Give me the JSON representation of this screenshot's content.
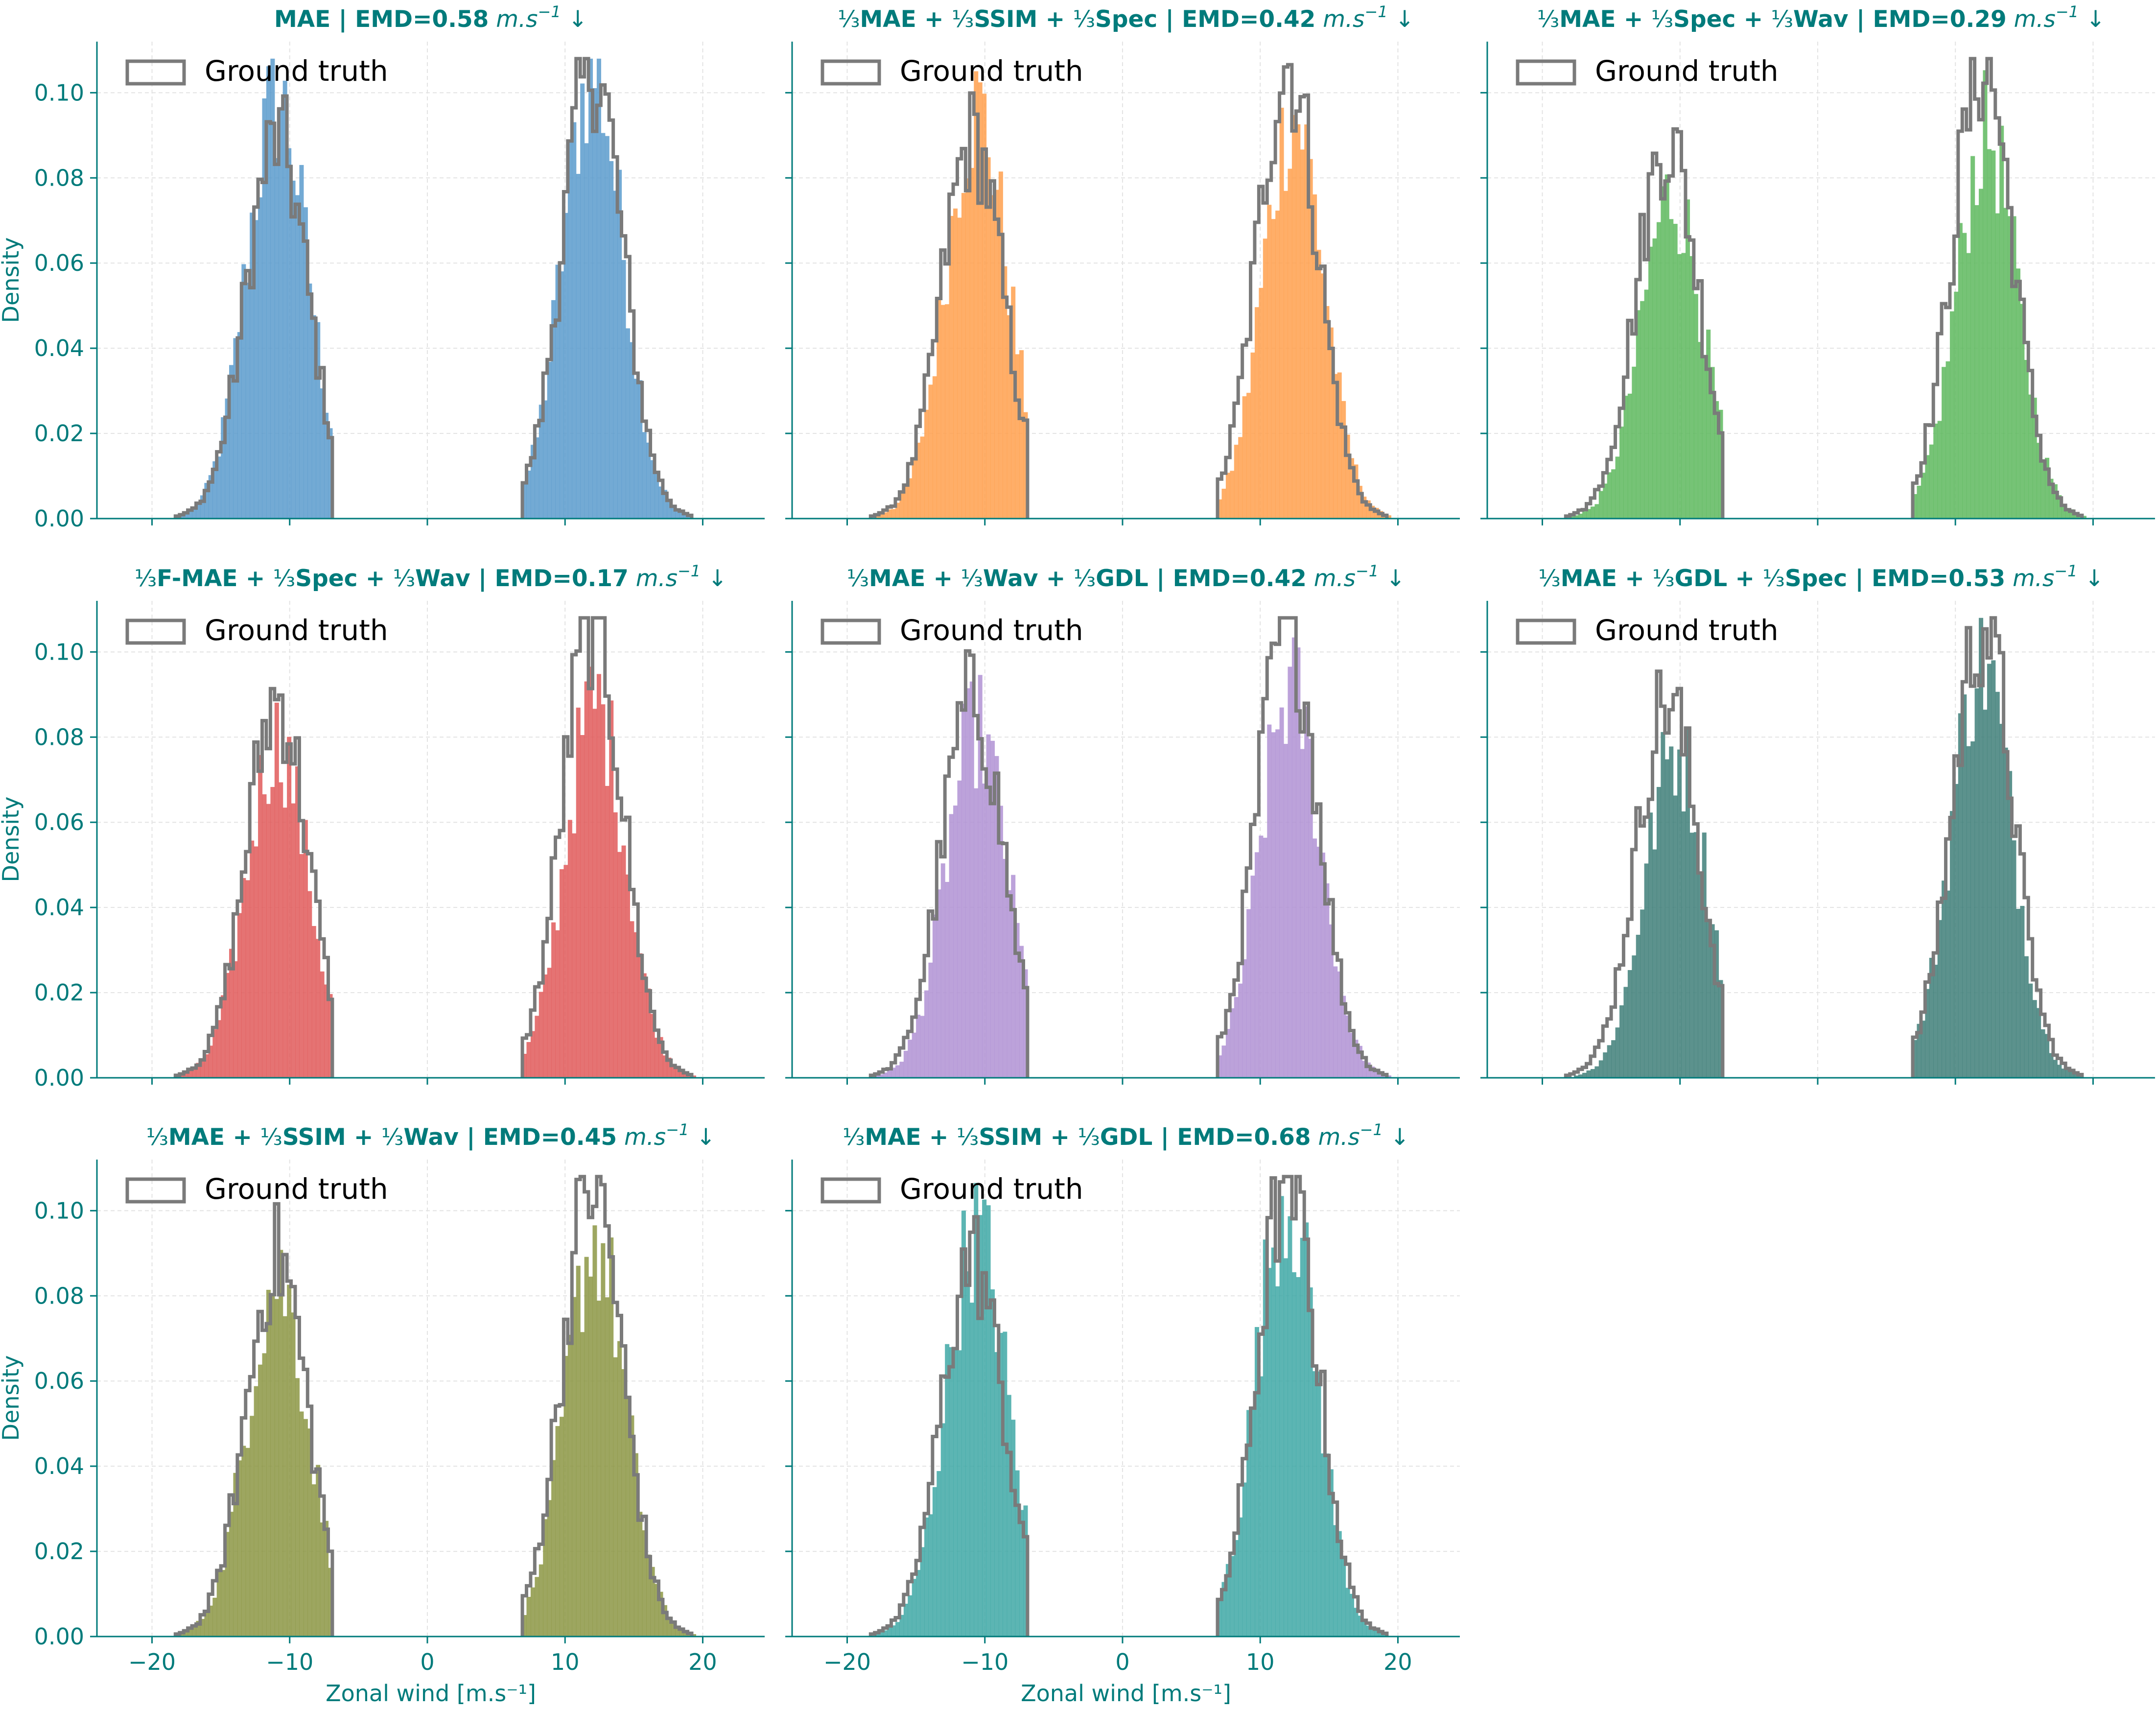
{
  "figure": {
    "accent_color": "#007b7b",
    "ground_truth_color": "#7a7a7a",
    "y_axis_label": "Density",
    "x_axis_label": "Zonal wind [m.s⁻¹]",
    "legend_label": "Ground truth",
    "x_tick_labels": [
      "−20",
      "−10",
      "0",
      "10",
      "20"
    ],
    "y_tick_labels": [
      "0.00",
      "0.02",
      "0.04",
      "0.06",
      "0.08",
      "0.10"
    ]
  },
  "chart_data": [
    {
      "type": "bar",
      "title": "MAE | EMD=0.58 m.s⁻¹ ↓",
      "title_parts": {
        "frac": false,
        "terms": [
          "MAE"
        ],
        "emd": "0.58"
      },
      "color": "#5b9bcc",
      "xlim": [
        -24,
        24.5
      ],
      "ylim": [
        0,
        0.112
      ],
      "xticks": [
        -20,
        -10,
        0,
        10,
        20
      ],
      "yticks": [
        0,
        0.02,
        0.04,
        0.06,
        0.08,
        0.1
      ],
      "legend": "upper-left",
      "grid": true,
      "ground_truth": {
        "peaks": [
          -10.9,
          12.0
        ],
        "peak_density": [
          0.089,
          0.107
        ]
      },
      "prediction": {
        "peaks": [
          -10.9,
          12.0
        ],
        "peak_density": [
          0.098,
          0.105
        ]
      }
    },
    {
      "type": "bar",
      "title": "⅓MAE + ⅓SSIM + ⅓Spec | EMD=0.42 m.s⁻¹ ↓",
      "title_parts": {
        "frac": true,
        "terms": [
          "MAE",
          "SSIM",
          "Spec"
        ],
        "emd": "0.42"
      },
      "color": "#ffa04d",
      "xlim": [
        -24,
        24.5
      ],
      "ylim": [
        0,
        0.112
      ],
      "xticks": [
        -20,
        -10,
        0,
        10,
        20
      ],
      "yticks": [
        0,
        0.02,
        0.04,
        0.06,
        0.08,
        0.1
      ],
      "legend": "upper-left",
      "grid": true,
      "ground_truth": {
        "peaks": [
          -10.9,
          12.0
        ],
        "peak_density": [
          0.089,
          0.107
        ]
      },
      "prediction": {
        "peaks": [
          -10.6,
          12.4
        ],
        "peak_density": [
          0.096,
          0.095
        ]
      }
    },
    {
      "type": "bar",
      "title": "⅓MAE + ⅓Spec + ⅓Wav | EMD=0.29 m.s⁻¹ ↓",
      "title_parts": {
        "frac": true,
        "terms": [
          "MAE",
          "Spec",
          "Wav"
        ],
        "emd": "0.29"
      },
      "color": "#5eb95e",
      "xlim": [
        -24,
        24.5
      ],
      "ylim": [
        0,
        0.112
      ],
      "xticks": [
        -20,
        -10,
        0,
        10,
        20
      ],
      "yticks": [
        0,
        0.02,
        0.04,
        0.06,
        0.08,
        0.1
      ],
      "legend": "upper-left",
      "grid": true,
      "ground_truth": {
        "peaks": [
          -10.9,
          12.0
        ],
        "peak_density": [
          0.089,
          0.107
        ]
      },
      "prediction": {
        "peaks": [
          -10.6,
          12.3
        ],
        "peak_density": [
          0.076,
          0.09
        ]
      }
    },
    {
      "type": "bar",
      "title": "⅓F-MAE + ⅓Spec + ⅓Wav | EMD=0.17 m.s⁻¹ ↓",
      "title_parts": {
        "frac": true,
        "terms": [
          "F-MAE",
          "Spec",
          "Wav"
        ],
        "emd": "0.17"
      },
      "color": "#e05a5a",
      "xlim": [
        -24,
        24.5
      ],
      "ylim": [
        0,
        0.112
      ],
      "xticks": [
        -20,
        -10,
        0,
        10,
        20
      ],
      "yticks": [
        0,
        0.02,
        0.04,
        0.06,
        0.08,
        0.1
      ],
      "legend": "upper-left",
      "grid": true,
      "ground_truth": {
        "peaks": [
          -10.9,
          12.0
        ],
        "peak_density": [
          0.089,
          0.107
        ]
      },
      "prediction": {
        "peaks": [
          -10.9,
          12.2
        ],
        "peak_density": [
          0.079,
          0.088
        ]
      }
    },
    {
      "type": "bar",
      "title": "⅓MAE + ⅓Wav + ⅓GDL | EMD=0.42 m.s⁻¹ ↓",
      "title_parts": {
        "frac": true,
        "terms": [
          "MAE",
          "Wav",
          "GDL"
        ],
        "emd": "0.42"
      },
      "color": "#b092d4",
      "xlim": [
        -24,
        24.5
      ],
      "ylim": [
        0,
        0.112
      ],
      "xticks": [
        -20,
        -10,
        0,
        10,
        20
      ],
      "yticks": [
        0,
        0.02,
        0.04,
        0.06,
        0.08,
        0.1
      ],
      "legend": "upper-left",
      "grid": true,
      "ground_truth": {
        "peaks": [
          -10.9,
          12.0
        ],
        "peak_density": [
          0.089,
          0.107
        ]
      },
      "prediction": {
        "peaks": [
          -10.6,
          12.2
        ],
        "peak_density": [
          0.082,
          0.091
        ]
      }
    },
    {
      "type": "bar",
      "title": "⅓MAE + ⅓GDL + ⅓Spec | EMD=0.53 m.s⁻¹ ↓",
      "title_parts": {
        "frac": true,
        "terms": [
          "MAE",
          "GDL",
          "Spec"
        ],
        "emd": "0.53"
      },
      "color": "#3f7f79",
      "xlim": [
        -24,
        24.5
      ],
      "ylim": [
        0,
        0.112
      ],
      "xticks": [
        -20,
        -10,
        0,
        10,
        20
      ],
      "yticks": [
        0,
        0.02,
        0.04,
        0.06,
        0.08,
        0.1
      ],
      "legend": "upper-left",
      "grid": true,
      "ground_truth": {
        "peaks": [
          -10.9,
          12.0
        ],
        "peak_density": [
          0.089,
          0.107
        ]
      },
      "prediction": {
        "peaks": [
          -10.3,
          11.9
        ],
        "peak_density": [
          0.077,
          0.098
        ]
      }
    },
    {
      "type": "bar",
      "title": "⅓MAE + ⅓SSIM + ⅓Wav | EMD=0.45 m.s⁻¹ ↓",
      "title_parts": {
        "frac": true,
        "terms": [
          "MAE",
          "SSIM",
          "Wav"
        ],
        "emd": "0.45"
      },
      "color": "#8c9644",
      "xlim": [
        -24,
        24.5
      ],
      "ylim": [
        0,
        0.112
      ],
      "xticks": [
        -20,
        -10,
        0,
        10,
        20
      ],
      "yticks": [
        0,
        0.02,
        0.04,
        0.06,
        0.08,
        0.1
      ],
      "legend": "upper-left",
      "grid": true,
      "ground_truth": {
        "peaks": [
          -10.9,
          12.0
        ],
        "peak_density": [
          0.089,
          0.107
        ]
      },
      "prediction": {
        "peaks": [
          -10.9,
          12.2
        ],
        "peak_density": [
          0.084,
          0.093
        ]
      }
    },
    {
      "type": "bar",
      "title": "⅓MAE + ⅓SSIM + ⅓GDL | EMD=0.68 m.s⁻¹ ↓",
      "title_parts": {
        "frac": true,
        "terms": [
          "MAE",
          "SSIM",
          "GDL"
        ],
        "emd": "0.68"
      },
      "color": "#40a8a6",
      "xlim": [
        -24,
        24.5
      ],
      "ylim": [
        0,
        0.112
      ],
      "xticks": [
        -20,
        -10,
        0,
        10,
        20
      ],
      "yticks": [
        0,
        0.02,
        0.04,
        0.06,
        0.08,
        0.1
      ],
      "legend": "upper-left",
      "grid": true,
      "ground_truth": {
        "peaks": [
          -10.9,
          12.0
        ],
        "peak_density": [
          0.089,
          0.107
        ]
      },
      "prediction": {
        "peaks": [
          -10.6,
          11.9
        ],
        "peak_density": [
          0.095,
          0.104
        ]
      }
    }
  ]
}
